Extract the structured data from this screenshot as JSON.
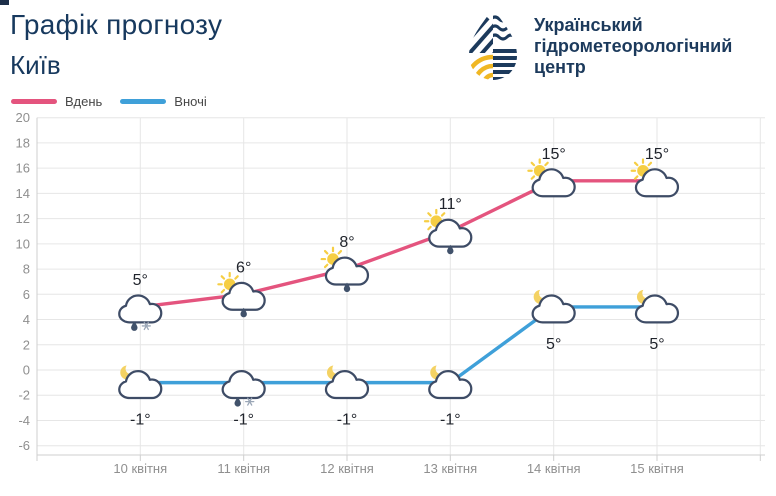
{
  "header": {
    "title_line1": "Графік прогнозу",
    "title_line2": "Київ",
    "org_name": {
      "line1": "Український",
      "line2": "гідрометеорологічний",
      "line3": "центр"
    }
  },
  "legend": [
    {
      "label": "Вдень",
      "color": "#e4547e"
    },
    {
      "label": "Вночі",
      "color": "#3fa0d9"
    }
  ],
  "chart_data": {
    "type": "line",
    "title": "Графік прогнозу Київ",
    "categories": [
      "10 квітня",
      "11 квітня",
      "12 квітня",
      "13 квітня",
      "14 квітня",
      "15 квітня"
    ],
    "series": [
      {
        "name": "Вдень",
        "color": "#e4547e",
        "values": [
          5,
          6,
          8,
          11,
          15,
          15
        ],
        "point_labels": [
          "5°",
          "6°",
          "8°",
          "11°",
          "15°",
          "15°"
        ],
        "icons": [
          "cloud-rain-snow",
          "sun-cloud-rain",
          "sun-cloud-rain",
          "sun-cloud-rain",
          "sun-cloud",
          "sun-cloud"
        ],
        "label_position": "above"
      },
      {
        "name": "Вночі",
        "color": "#3fa0d9",
        "values": [
          -1,
          -1,
          -1,
          -1,
          5,
          5
        ],
        "point_labels": [
          "-1°",
          "-1°",
          "-1°",
          "-1°",
          "5°",
          "5°"
        ],
        "icons": [
          "moon-cloud",
          "cloud-rain-snow",
          "moon-cloud",
          "moon-cloud",
          "moon-cloud",
          "moon-cloud"
        ],
        "label_position": "below"
      }
    ],
    "ylim": [
      -6,
      20
    ],
    "yticks": [
      20,
      18,
      16,
      14,
      12,
      10,
      8,
      6,
      4,
      2,
      0,
      -2,
      -4,
      -6
    ],
    "grid": true,
    "legend_position": "top-left",
    "icon_colors": {
      "sun": "#f6ce44",
      "moon": "#f4d263",
      "cloud_outline": "#3e4c66",
      "rain": "#41526b",
      "snow": "#9aa6b6"
    }
  }
}
